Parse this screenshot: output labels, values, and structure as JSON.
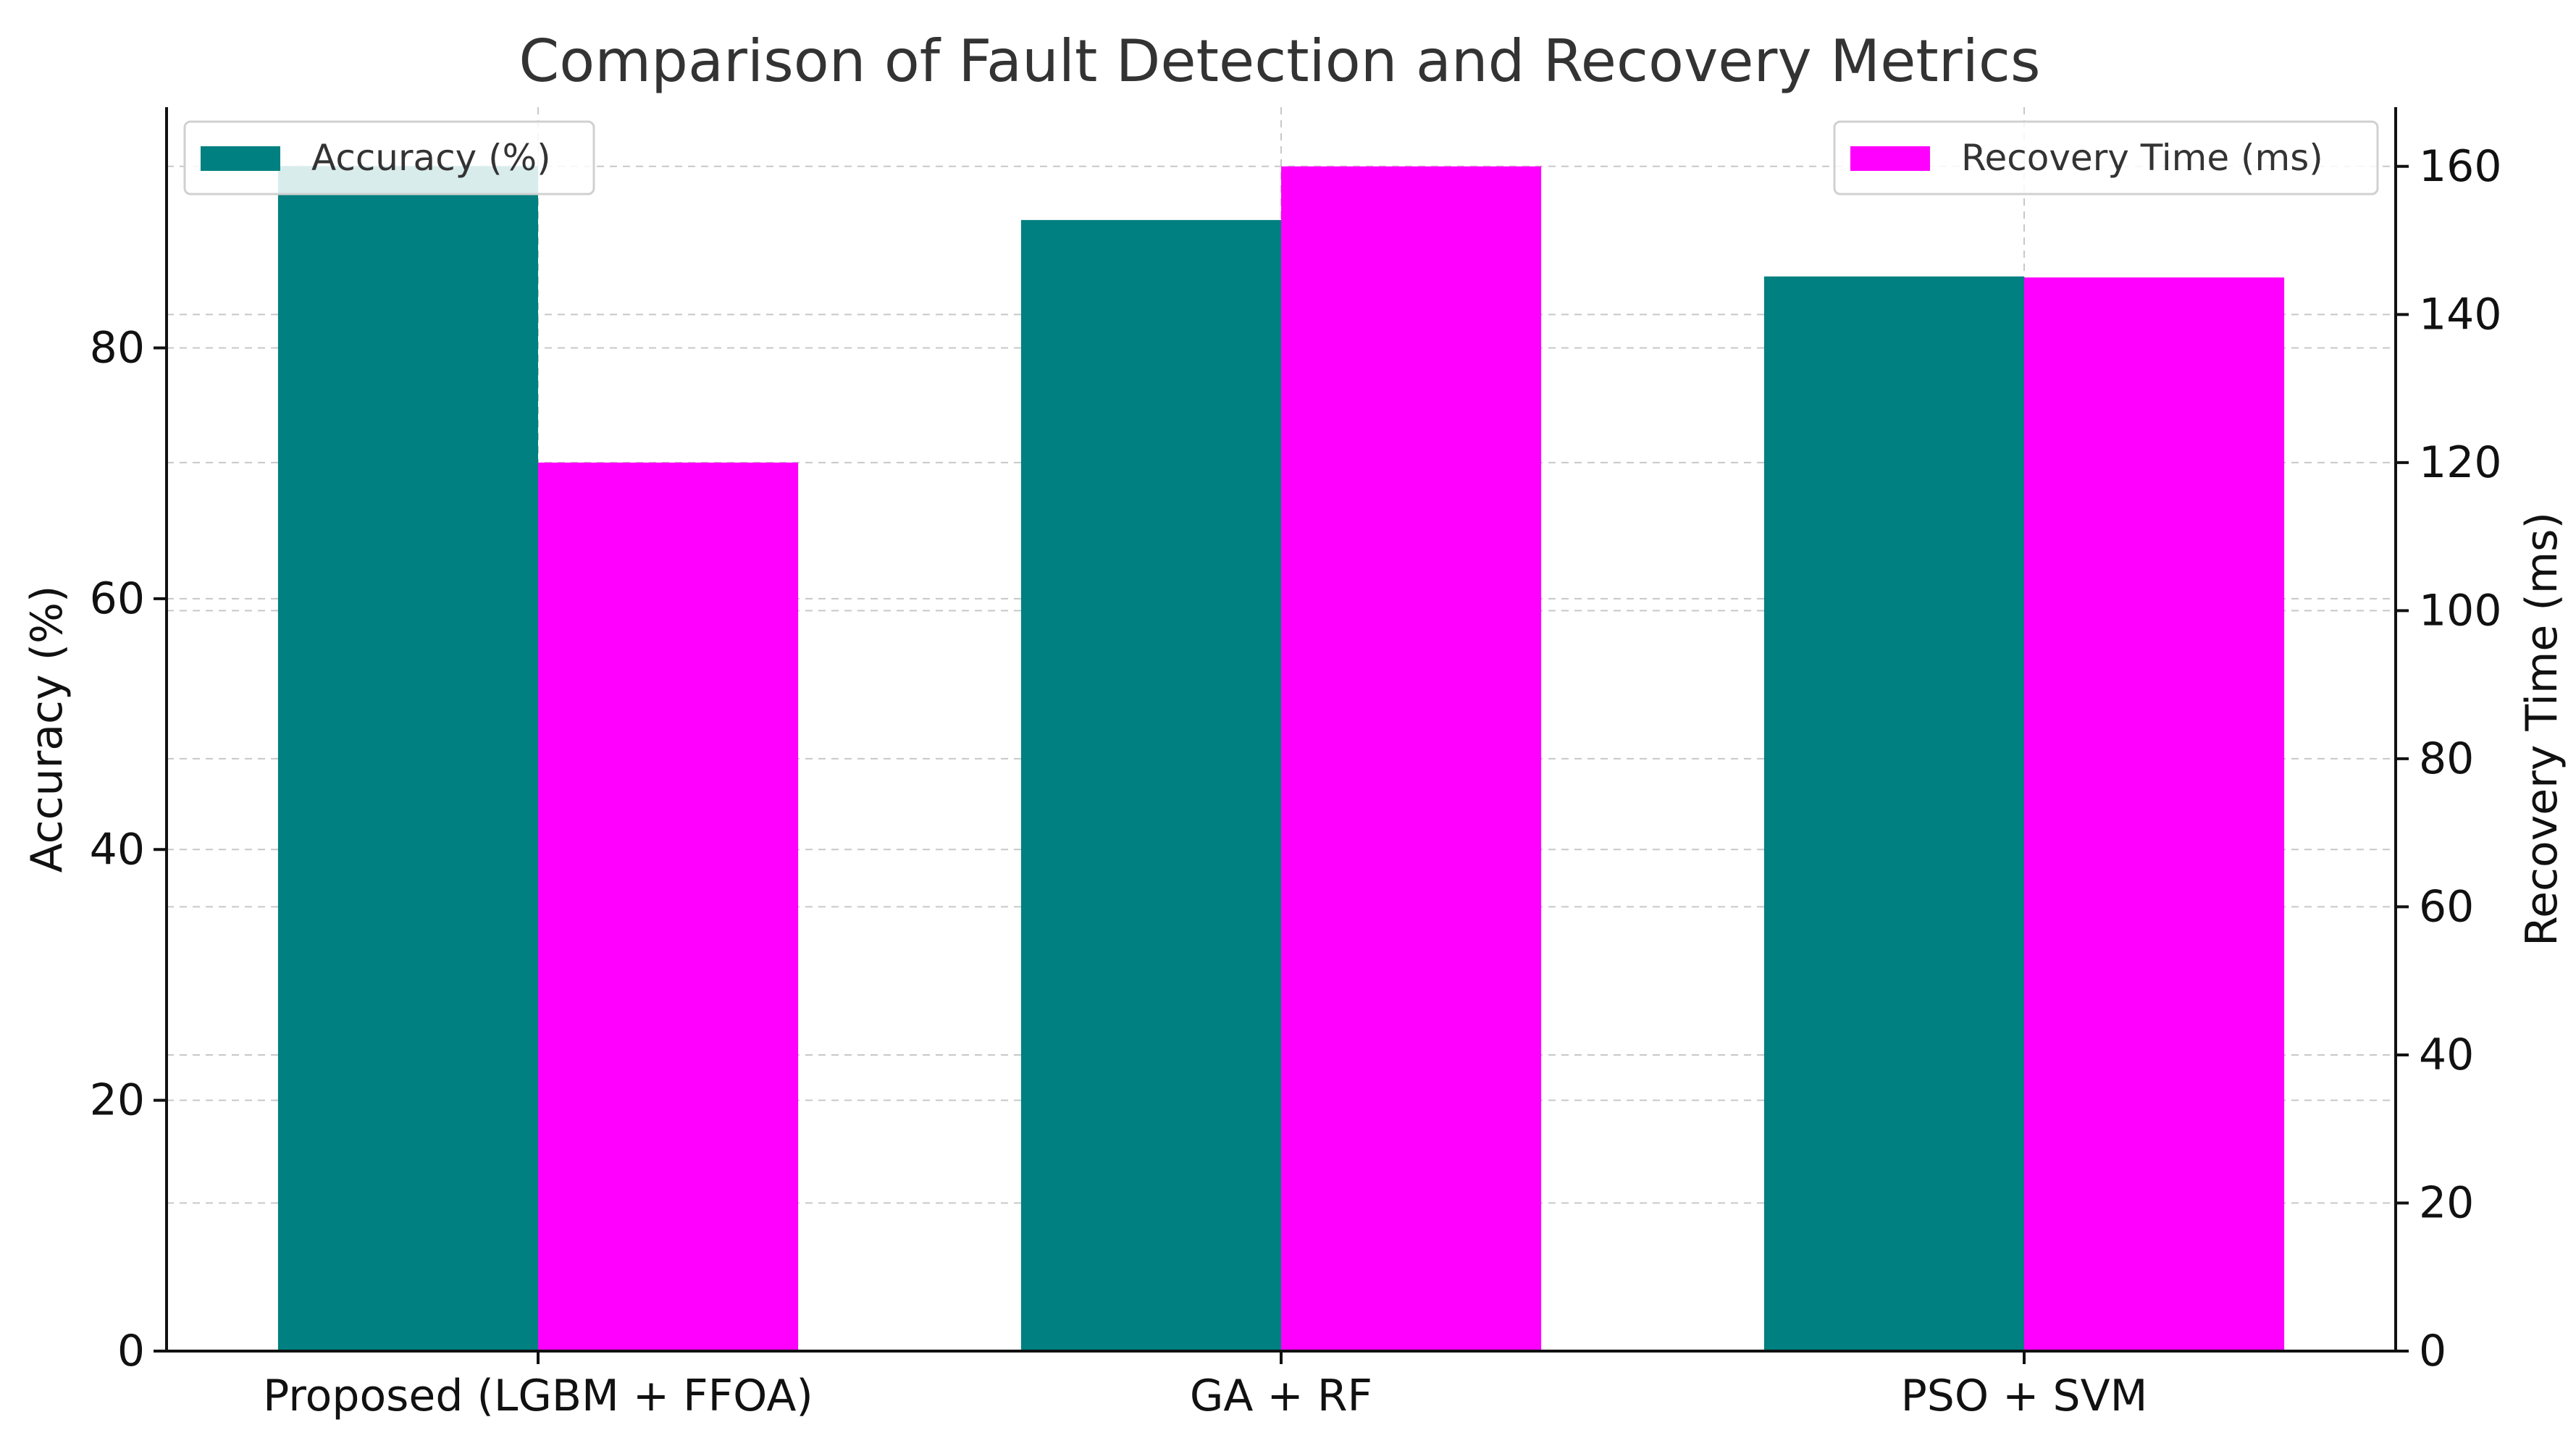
{
  "chart_data": {
    "type": "bar",
    "title": "Comparison of Fault Detection and Recovery Metrics",
    "categories": [
      "Proposed (LGBM + FFOA)",
      "GA + RF",
      "PSO + SVM"
    ],
    "series": [
      {
        "name": "Accuracy (%)",
        "axis": "left",
        "color": "#008080",
        "values": [
          94.5,
          90.2,
          85.7
        ]
      },
      {
        "name": "Recovery Time (ms)",
        "axis": "right",
        "color": "#ff00ff",
        "values": [
          120,
          160,
          145
        ]
      }
    ],
    "ylabel": "Accuracy (%)",
    "y2label": "Recovery Time (ms)",
    "ylim": [
      0,
      99.2
    ],
    "y2lim": [
      0,
      168
    ],
    "yticks": [
      0,
      20,
      40,
      60,
      80
    ],
    "y2ticks": [
      0,
      20,
      40,
      60,
      80,
      100,
      120,
      140,
      160
    ],
    "grid": true,
    "legend_left": "upper-left",
    "legend_right": "upper-right"
  }
}
